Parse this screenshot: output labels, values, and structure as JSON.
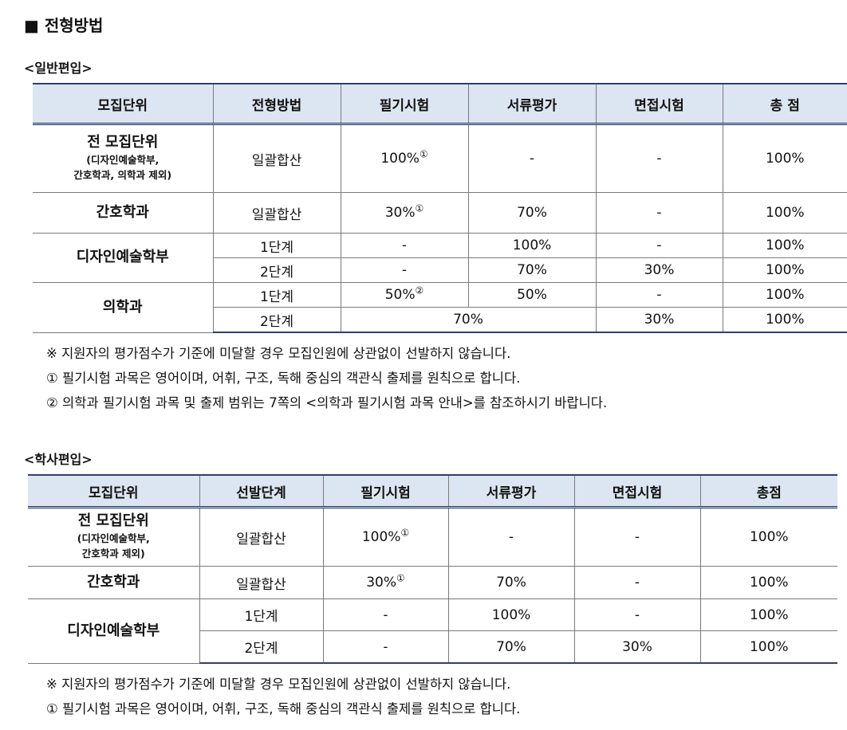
{
  "section_title": "■ 전형방법",
  "general": {
    "subtitle": "<일반편입>",
    "headers": [
      "모집단위",
      "전형방법",
      "필기시험",
      "서류평가",
      "면접시험",
      "총 점"
    ],
    "rows": {
      "all": {
        "unit": "전 모집단위",
        "unit_note_1": "(디자인예술학부,",
        "unit_note_2": "간호학과, 의학과 제외)",
        "method": "일괄합산",
        "written": "100%",
        "written_mark": "①",
        "document": "-",
        "interview": "-",
        "total": "100%"
      },
      "nursing": {
        "unit": "간호학과",
        "method": "일괄합산",
        "written": "30%",
        "written_mark": "①",
        "document": "70%",
        "interview": "-",
        "total": "100%"
      },
      "design": {
        "unit": "디자인예술학부",
        "stage1": {
          "method": "1단계",
          "written": "-",
          "document": "100%",
          "interview": "-",
          "total": "100%"
        },
        "stage2": {
          "method": "2단계",
          "written": "-",
          "document": "70%",
          "interview": "30%",
          "total": "100%"
        }
      },
      "medicine": {
        "unit": "의학과",
        "stage1": {
          "method": "1단계",
          "written": "50%",
          "written_mark": "②",
          "document": "50%",
          "interview": "-",
          "total": "100%"
        },
        "stage2": {
          "method": "2단계",
          "written_document": "70%",
          "interview": "30%",
          "total": "100%"
        }
      }
    },
    "notes": [
      "※ 지원자의 평가점수가 기준에 미달할 경우 모집인원에 상관없이 선발하지 않습니다.",
      "① 필기시험 과목은 영어이며, 어휘, 구조, 독해 중심의 객관식 출제를 원칙으로 합니다.",
      "② 의학과 필기시험 과목 및 출제 범위는 7쪽의 <의학과 필기시험 과목 안내>를 참조하시기 바랍니다."
    ]
  },
  "bachelor": {
    "subtitle": "<학사편입>",
    "headers": [
      "모집단위",
      "선발단계",
      "필기시험",
      "서류평가",
      "면접시험",
      "총점"
    ],
    "rows": {
      "all": {
        "unit": "전 모집단위",
        "unit_note_1": "(디자인예술학부,",
        "unit_note_2": "간호학과 제외)",
        "method": "일괄합산",
        "written": "100%",
        "written_mark": "①",
        "document": "-",
        "interview": "-",
        "total": "100%"
      },
      "nursing": {
        "unit": "간호학과",
        "method": "일괄합산",
        "written": "30%",
        "written_mark": "①",
        "document": "70%",
        "interview": "-",
        "total": "100%"
      },
      "design": {
        "unit": "디자인예술학부",
        "stage1": {
          "method": "1단계",
          "written": "-",
          "document": "100%",
          "interview": "-",
          "total": "100%"
        },
        "stage2": {
          "method": "2단계",
          "written": "-",
          "document": "70%",
          "interview": "30%",
          "total": "100%"
        }
      }
    },
    "notes": [
      "※ 지원자의 평가점수가 기준에 미달할 경우 모집인원에 상관없이 선발하지 않습니다.",
      "① 필기시험 과목은 영어이며, 어휘, 구조, 독해 중심의 객관식 출제를 원칙으로 합니다."
    ]
  }
}
